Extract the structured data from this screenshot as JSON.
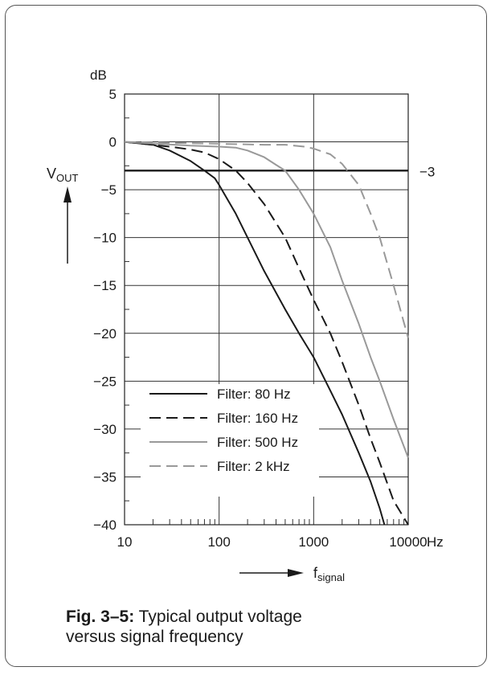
{
  "chart_data": {
    "type": "line",
    "title": "",
    "ylabel_unit": "dB",
    "ylabel_main": "V",
    "ylabel_sub": "OUT",
    "xlabel_main": "f",
    "xlabel_sub": "signal",
    "x_unit": "Hz",
    "x_scale": "log",
    "xlim": [
      10,
      10000
    ],
    "ylim": [
      -40,
      5
    ],
    "x_ticks": [
      "10",
      "100",
      "1000",
      "10000"
    ],
    "y_ticks": [
      "5",
      "0",
      "−5",
      "−10",
      "−15",
      "−20",
      "−25",
      "−30",
      "−35",
      "−40"
    ],
    "reference_line": {
      "y": -3,
      "label": "−3"
    },
    "grid": true,
    "legend_position": "bottom-left",
    "series": [
      {
        "name": "Filter: 80 Hz",
        "color": "#1a1a1a",
        "dash": "solid",
        "x": [
          10,
          20,
          30,
          50,
          70,
          90,
          100,
          150,
          200,
          300,
          500,
          700,
          1000,
          1500,
          2000,
          3000,
          4000,
          5000,
          5600
        ],
        "y": [
          0,
          -0.3,
          -0.9,
          -2.0,
          -3.0,
          -3.8,
          -4.5,
          -7.5,
          -10.0,
          -13.5,
          -17.5,
          -20.0,
          -22.5,
          -26.0,
          -28.5,
          -32.5,
          -35.5,
          -38.3,
          -40
        ]
      },
      {
        "name": "Filter: 160 Hz",
        "color": "#1a1a1a",
        "dash": "dashed",
        "x": [
          10,
          30,
          50,
          70,
          100,
          150,
          200,
          300,
          500,
          700,
          1000,
          1500,
          2000,
          3000,
          4000,
          5000,
          7000,
          10000
        ],
        "y": [
          0,
          -0.5,
          -0.8,
          -1.1,
          -1.8,
          -3.0,
          -4.3,
          -6.5,
          -10.0,
          -13.2,
          -16.5,
          -20.0,
          -23.0,
          -27.5,
          -31.0,
          -33.5,
          -37.5,
          -40
        ]
      },
      {
        "name": "Filter: 500 Hz",
        "color": "#999999",
        "dash": "solid",
        "x": [
          10,
          50,
          100,
          150,
          200,
          300,
          400,
          500,
          700,
          1000,
          1500,
          2000,
          3000,
          4000,
          5000,
          7000,
          10000
        ],
        "y": [
          0,
          -0.4,
          -0.5,
          -0.6,
          -0.9,
          -1.6,
          -2.4,
          -3.0,
          -5.0,
          -7.5,
          -11.0,
          -14.5,
          -19.0,
          -22.5,
          -25.0,
          -29.0,
          -33.0
        ]
      },
      {
        "name": "Filter: 2 kHz",
        "color": "#999999",
        "dash": "dashed",
        "x": [
          10,
          100,
          300,
          500,
          800,
          1000,
          1500,
          2000,
          3000,
          4000,
          5000,
          7000,
          10000
        ],
        "y": [
          0,
          -0.2,
          -0.3,
          -0.3,
          -0.5,
          -0.7,
          -1.3,
          -2.3,
          -4.5,
          -7.5,
          -10.0,
          -15.0,
          -20.5
        ]
      }
    ]
  },
  "caption": {
    "fig_label": "Fig. 3–5:",
    "line1": "Typical output voltage",
    "line2": "versus signal frequency"
  }
}
